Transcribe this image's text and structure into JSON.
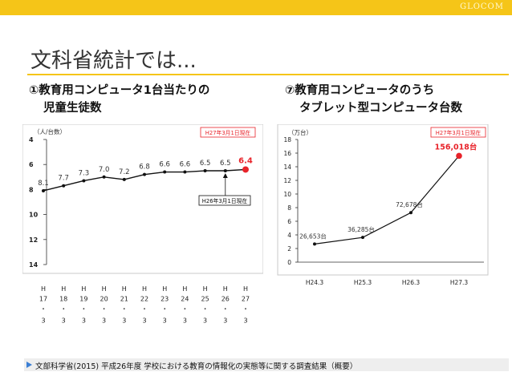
{
  "brand": "GLOCOM",
  "title": "文科省統計では...",
  "footer": "文部科学省(2015) 平成26年度 学校における教育の情報化の実態等に関する調査結果（概要）",
  "colors": {
    "accent": "#f5c518",
    "highlight": "#e8232a",
    "footer_arrow": "#3b7fd4"
  },
  "chart_data": [
    {
      "type": "line",
      "title_line1": "①教育用コンピュータ1台当たりの",
      "title_line2": "児童生徒数",
      "ylabel": "（人/台数）",
      "note": "H27年3月1日現在",
      "annotation": "H26年3月1日現在",
      "inverted_y": true,
      "ylim": [
        4,
        14
      ],
      "yticks": [
        "4",
        "6",
        "8",
        "10",
        "12",
        "14"
      ],
      "categories": [
        [
          "H",
          "17",
          "・",
          "3"
        ],
        [
          "H",
          "18",
          "・",
          "3"
        ],
        [
          "H",
          "19",
          "・",
          "3"
        ],
        [
          "H",
          "20",
          "・",
          "3"
        ],
        [
          "H",
          "21",
          "・",
          "3"
        ],
        [
          "H",
          "22",
          "・",
          "3"
        ],
        [
          "H",
          "23",
          "・",
          "3"
        ],
        [
          "H",
          "24",
          "・",
          "3"
        ],
        [
          "H",
          "25",
          "・",
          "3"
        ],
        [
          "H",
          "26",
          "・",
          "3"
        ],
        [
          "H",
          "27",
          "・",
          "3"
        ]
      ],
      "values": [
        8.1,
        7.7,
        7.3,
        7.0,
        7.2,
        6.8,
        6.6,
        6.6,
        6.5,
        6.5,
        6.4
      ],
      "value_labels": [
        "8.1",
        "7.7",
        "7.3",
        "7.0",
        "7.2",
        "6.8",
        "6.6",
        "6.6",
        "6.5",
        "6.5",
        "6.4"
      ]
    },
    {
      "type": "line",
      "title_line1": "⑦教育用コンピュータのうち",
      "title_line2": "タブレット型コンピュータ台数",
      "ylabel": "（万台）",
      "note": "H27年3月1日現在",
      "ylim": [
        0,
        18
      ],
      "yticks": [
        "0",
        "2",
        "4",
        "6",
        "8",
        "10",
        "12",
        "14",
        "16",
        "18"
      ],
      "categories": [
        "H24.3",
        "H25.3",
        "H26.3",
        "H27.3"
      ],
      "values": [
        2.6653,
        3.6285,
        7.2678,
        15.6018
      ],
      "value_labels": [
        "26,653台",
        "36,285台",
        "72,678台",
        "156,018台"
      ]
    }
  ]
}
